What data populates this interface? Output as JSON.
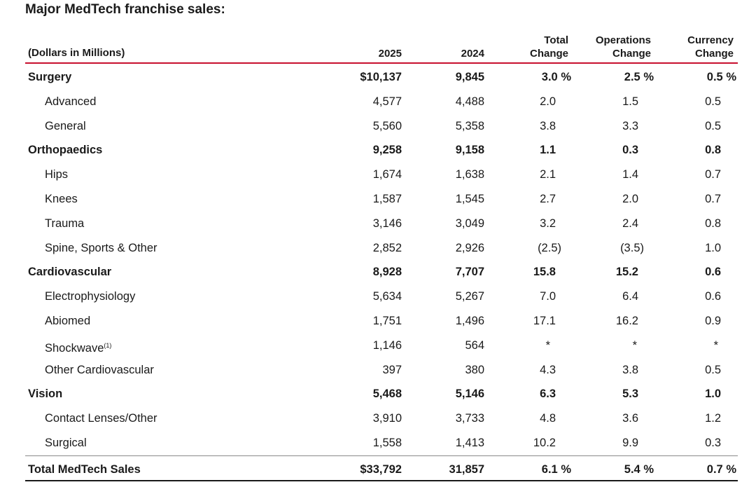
{
  "title": "Major MedTech franchise sales:",
  "header": {
    "label": "(Dollars in Millions)",
    "col_2025": "2025",
    "col_2024": "2024",
    "total_change_1": "Total",
    "total_change_2": "Change",
    "ops_change_1": "Operations",
    "ops_change_2": "Change",
    "cur_change_1": "Currency",
    "cur_change_2": "Change"
  },
  "rows": [
    {
      "label": "Surgery",
      "v2025": "$10,137",
      "v2024": "9,845",
      "total": "3.0 %",
      "ops": "2.5 %",
      "cur": "0.5 %"
    },
    {
      "label": "Advanced",
      "v2025": "4,577",
      "v2024": "4,488",
      "total": "2.0",
      "ops": "1.5",
      "cur": "0.5"
    },
    {
      "label": "General",
      "v2025": "5,560",
      "v2024": "5,358",
      "total": "3.8",
      "ops": "3.3",
      "cur": "0.5"
    },
    {
      "label": "Orthopaedics",
      "v2025": "9,258",
      "v2024": "9,158",
      "total": "1.1",
      "ops": "0.3",
      "cur": "0.8"
    },
    {
      "label": "Hips",
      "v2025": "1,674",
      "v2024": "1,638",
      "total": "2.1",
      "ops": "1.4",
      "cur": "0.7"
    },
    {
      "label": "Knees",
      "v2025": "1,587",
      "v2024": "1,545",
      "total": "2.7",
      "ops": "2.0",
      "cur": "0.7"
    },
    {
      "label": "Trauma",
      "v2025": "3,146",
      "v2024": "3,049",
      "total": "3.2",
      "ops": "2.4",
      "cur": "0.8"
    },
    {
      "label": "Spine, Sports & Other",
      "v2025": "2,852",
      "v2024": "2,926",
      "total": "(2.5)",
      "ops": "(3.5)",
      "cur": "1.0"
    },
    {
      "label": "Cardiovascular",
      "v2025": "8,928",
      "v2024": "7,707",
      "total": "15.8",
      "ops": "15.2",
      "cur": "0.6"
    },
    {
      "label": "Electrophysiology",
      "v2025": "5,634",
      "v2024": "5,267",
      "total": "7.0",
      "ops": "6.4",
      "cur": "0.6"
    },
    {
      "label": "Abiomed",
      "v2025": "1,751",
      "v2024": "1,496",
      "total": "17.1",
      "ops": "16.2",
      "cur": "0.9"
    },
    {
      "label": "Shockwave",
      "footnote": "(1)",
      "v2025": "1,146",
      "v2024": "564",
      "total": "*",
      "ops": "*",
      "cur": "*"
    },
    {
      "label": "Other Cardiovascular",
      "v2025": "397",
      "v2024": "380",
      "total": "4.3",
      "ops": "3.8",
      "cur": "0.5"
    },
    {
      "label": "Vision",
      "v2025": "5,468",
      "v2024": "5,146",
      "total": "6.3",
      "ops": "5.3",
      "cur": "1.0"
    },
    {
      "label": "Contact Lenses/Other",
      "v2025": "3,910",
      "v2024": "3,733",
      "total": "4.8",
      "ops": "3.6",
      "cur": "1.2"
    },
    {
      "label": "Surgical",
      "v2025": "1,558",
      "v2024": "1,413",
      "total": "10.2",
      "ops": "9.9",
      "cur": "0.3"
    }
  ],
  "total": {
    "label": "Total MedTech Sales",
    "v2025": "$33,792",
    "v2024": "31,857",
    "total": "6.1 %",
    "ops": "5.4 %",
    "cur": "0.7 %"
  }
}
